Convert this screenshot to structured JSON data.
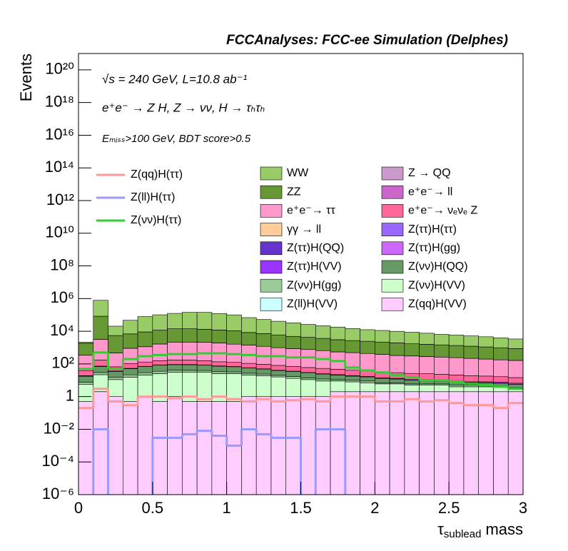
{
  "chart_data": {
    "type": "stacked-histogram",
    "title": "FCCAnalyses: FCC-ee Simulation (Delphes)",
    "annotations": [
      "√s = 240 GeV, L=10.8 ab⁻¹",
      "e⁺e⁻ → Z H, Z → νν, H → τₕτₕ",
      "Eₘᵢₛₛ>100 GeV, BDT score>0.5"
    ],
    "ylabel": "Events",
    "xlabel": {
      "symbol": "τ",
      "subscript": "sublead",
      "text": "mass"
    },
    "log_y": true,
    "bins": [
      0,
      0.1,
      0.2,
      0.3,
      0.4,
      0.5,
      0.6,
      0.7,
      0.8,
      0.9,
      1.0,
      1.1,
      1.2,
      1.3,
      1.4,
      1.5,
      1.6,
      1.7,
      1.8,
      1.9,
      2.0,
      2.1,
      2.2,
      2.3,
      2.4,
      2.5,
      2.6,
      2.7,
      2.8,
      2.9,
      3.0
    ],
    "xlim": [
      0,
      3
    ],
    "xticks": [
      0,
      0.5,
      1,
      1.5,
      2,
      2.5,
      3
    ],
    "ylim": [
      1e-06,
      1e+21
    ],
    "yticks": [
      {
        "value": 1e-06,
        "label": "10⁻⁶"
      },
      {
        "value": 0.0001,
        "label": "10⁻⁴"
      },
      {
        "value": 0.01,
        "label": "10⁻²"
      },
      1,
      {
        "value": 100.0,
        "label": "10²"
      },
      {
        "value": 10000.0,
        "label": "10⁴"
      },
      {
        "value": 1000000.0,
        "label": "10⁶"
      },
      {
        "value": 100000000.0,
        "label": "10⁸"
      },
      {
        "value": 10000000000.0,
        "label": "10¹⁰"
      },
      {
        "value": 1000000000000.0,
        "label": "10¹²"
      },
      {
        "value": 100000000000000.0,
        "label": "10¹⁴"
      },
      {
        "value": 1e+16,
        "label": "10¹⁶"
      },
      {
        "value": 1e+18,
        "label": "10¹⁸"
      },
      {
        "value": 1e+20,
        "label": "10²⁰"
      }
    ],
    "series": [
      {
        "name": "WW",
        "color": "#99cc66",
        "values": [
          300,
          700000,
          15000,
          40000,
          70000,
          90000,
          110000,
          130000,
          130000,
          110000,
          90000,
          60000,
          45000,
          35000,
          28000,
          22000,
          18000,
          15000,
          12000,
          10000,
          9000,
          8000,
          7000,
          6000,
          5000,
          4500,
          4000,
          3500,
          3000,
          2500
        ]
      },
      {
        "name": "Z → QQ",
        "color": "#cc99cc",
        "values": [
          2,
          10,
          3,
          4,
          5,
          5,
          5,
          5,
          5,
          4,
          4,
          4,
          3,
          3,
          3,
          3,
          2,
          2,
          2,
          2,
          2,
          2,
          2,
          1,
          1,
          1,
          1,
          1,
          1,
          1
        ]
      },
      {
        "name": "ZZ",
        "color": "#669933",
        "values": [
          1500,
          80000,
          5000,
          6000,
          8000,
          10000,
          12000,
          12000,
          11000,
          10000,
          9000,
          7000,
          6000,
          5000,
          4000,
          3500,
          3000,
          2500,
          2200,
          2000,
          1800,
          1600,
          1400,
          1300,
          1200,
          1100,
          1000,
          900,
          800,
          700
        ]
      },
      {
        "name": "e⁺e⁻→ ll",
        "color": "#cc66cc",
        "values": [
          1,
          5,
          2,
          2,
          3,
          3,
          3,
          3,
          3,
          3,
          2,
          2,
          2,
          2,
          2,
          2,
          1,
          1,
          1,
          1,
          1,
          1,
          1,
          1,
          1,
          1,
          1,
          1,
          1,
          1
        ]
      },
      {
        "name": "e⁺e⁻→ ττ",
        "color": "#ff99cc",
        "values": [
          300,
          3000,
          400,
          800,
          1000,
          1500,
          2000,
          2000,
          2000,
          1800,
          1500,
          1300,
          1100,
          900,
          800,
          700,
          600,
          500,
          450,
          400,
          350,
          300,
          280,
          260,
          240,
          220,
          200,
          180,
          160,
          150
        ]
      },
      {
        "name": "e⁺e⁻→ νₑνₑ Z",
        "color": "#ff6699",
        "values": [
          20,
          100,
          30,
          50,
          60,
          70,
          80,
          80,
          70,
          60,
          55,
          50,
          45,
          40,
          35,
          30,
          28,
          25,
          22,
          20,
          18,
          16,
          15,
          14,
          13,
          12,
          11,
          10,
          9,
          8
        ]
      },
      {
        "name": "γγ → ll",
        "color": "#ffcc99",
        "values": [
          0,
          0,
          0,
          0,
          0,
          0,
          0,
          0,
          0,
          0,
          0.03,
          0,
          0,
          0,
          0,
          0,
          0,
          0,
          0,
          0,
          0,
          0,
          0,
          0,
          0,
          0,
          0,
          0,
          0,
          0
        ]
      },
      {
        "name": "Z(ττ)H(ττ)",
        "color": "#9966ff",
        "values": [
          1,
          3,
          1,
          2,
          2,
          2,
          2,
          2,
          2,
          2,
          2,
          1,
          1,
          1,
          1,
          1,
          1,
          1,
          1,
          1,
          1,
          1,
          1,
          1,
          1,
          1,
          1,
          1,
          1,
          1
        ]
      },
      {
        "name": "Z(ττ)H(QQ)",
        "color": "#6633cc",
        "values": [
          0.3,
          0.2,
          0.1,
          0.05,
          0.02,
          0.01,
          0.01,
          0.01,
          0.01,
          0.01,
          0,
          0,
          3e-05,
          0.01,
          0.01,
          0,
          0,
          0,
          0,
          0,
          1e-05,
          0,
          0.001,
          0.01,
          0,
          0,
          0.0001,
          0,
          0,
          0
        ]
      },
      {
        "name": "Z(ττ)H(gg)",
        "color": "#cc66ff",
        "values": [
          0,
          0,
          0.5,
          0.05,
          0,
          0,
          0,
          0,
          0.002,
          0,
          0,
          0,
          0,
          0,
          0,
          0,
          0,
          0,
          0,
          0,
          0,
          0,
          0,
          0.003,
          0,
          0,
          0,
          0,
          0,
          0
        ]
      },
      {
        "name": "Z(ττ)H(VV)",
        "color": "#9933ff",
        "values": [
          0.3,
          0.2,
          0.3,
          0.2,
          0.3,
          0.2,
          0.2,
          0.2,
          0.2,
          0.2,
          0.2,
          0.2,
          0.1,
          0.1,
          0.1,
          0.1,
          0.1,
          0.1,
          0.1,
          0.1,
          0.1,
          0.1,
          0.1,
          0.1,
          0.1,
          0.1,
          0.1,
          0.1,
          0.1,
          0.1
        ]
      },
      {
        "name": "Z(νν)H(QQ)",
        "color": "#669966",
        "values": [
          10,
          40,
          20,
          30,
          40,
          50,
          50,
          50,
          45,
          40,
          35,
          30,
          25,
          20,
          18,
          15,
          12,
          10,
          8,
          7,
          6,
          5,
          4,
          4,
          3,
          3,
          2,
          2,
          2,
          2
        ]
      },
      {
        "name": "Z(νν)H(gg)",
        "color": "#99cc99",
        "values": [
          2,
          8,
          4,
          6,
          8,
          10,
          10,
          10,
          9,
          8,
          7,
          6,
          5,
          4,
          4,
          3,
          3,
          2,
          2,
          2,
          1,
          1,
          1,
          1,
          1,
          1,
          1,
          1,
          0.5,
          0.5
        ]
      },
      {
        "name": "Z(νν)H(VV)",
        "color": "#ccffcc",
        "values": [
          5,
          20,
          10,
          15,
          20,
          25,
          30,
          30,
          30,
          25,
          25,
          20,
          18,
          15,
          12,
          10,
          8,
          7,
          6,
          5,
          4,
          4,
          3,
          3,
          3,
          2,
          2,
          2,
          2,
          1
        ]
      },
      {
        "name": "Z(ll)H(VV)",
        "color": "#ccffff",
        "values": [
          0,
          0.01,
          0,
          0,
          0.005,
          0,
          0,
          0,
          0,
          0,
          0,
          0,
          0,
          0,
          0,
          0,
          0,
          0,
          0,
          0,
          0,
          0,
          0,
          0,
          0,
          0,
          0,
          0,
          0,
          0
        ]
      },
      {
        "name": "Z(qq)H(VV)",
        "color": "#ffccff",
        "values": [
          0.5,
          2,
          1,
          0.5,
          1,
          0.5,
          1,
          0.5,
          0.5,
          0.5,
          0.5,
          1,
          1,
          1,
          1,
          1,
          1,
          2,
          2,
          2,
          2,
          2,
          2,
          2,
          2,
          2,
          2,
          2,
          2,
          2
        ]
      }
    ],
    "line_series": [
      {
        "name": "Z(qq)H(ττ)",
        "color": "#ff9999",
        "values": [
          0.2,
          3,
          0.5,
          0.3,
          1,
          1,
          0.8,
          1,
          0.7,
          1,
          0.7,
          0.5,
          0.7,
          0.5,
          0.6,
          0.7,
          0.5,
          1,
          1,
          1,
          0.5,
          0.5,
          0.7,
          0.5,
          0.6,
          0.4,
          0.3,
          0.3,
          0.2,
          0.4
        ]
      },
      {
        "name": "Z(ll)H(ττ)",
        "color": "#9999ff",
        "values": [
          0,
          0.01,
          0,
          0,
          0,
          0.003,
          0.003,
          0.005,
          0.008,
          0.004,
          0.001,
          0.01,
          0.005,
          0.003,
          0.003,
          0,
          0.01,
          0.01,
          0,
          0,
          0,
          0,
          0,
          0,
          0,
          0,
          0,
          0,
          0,
          0
        ]
      },
      {
        "name": "Z(νν)H(ττ)",
        "color": "#33cc33",
        "values": [
          50,
          500,
          50,
          200,
          300,
          350,
          400,
          400,
          450,
          450,
          400,
          350,
          300,
          300,
          250,
          250,
          200,
          150,
          60,
          40,
          30,
          20,
          15,
          10,
          10,
          8,
          6,
          5,
          4,
          3
        ]
      }
    ]
  }
}
